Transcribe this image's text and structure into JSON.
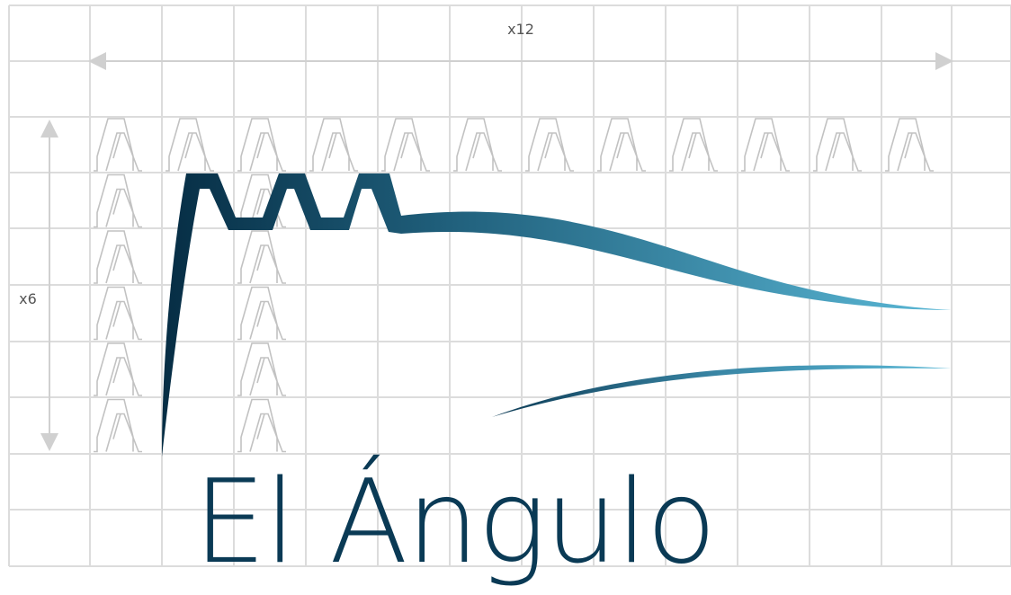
{
  "logo": {
    "wordmark": "El Ángulo",
    "color_dark": "#062d44",
    "color_light": "#5ab8d6"
  },
  "dimensions": {
    "horizontal_label": "x12",
    "vertical_label": "x6"
  },
  "palette": {
    "grid": "#dcdcdc",
    "outline": "#c2c2c2",
    "arrow": "#cfcfcf",
    "text": "#555555"
  }
}
